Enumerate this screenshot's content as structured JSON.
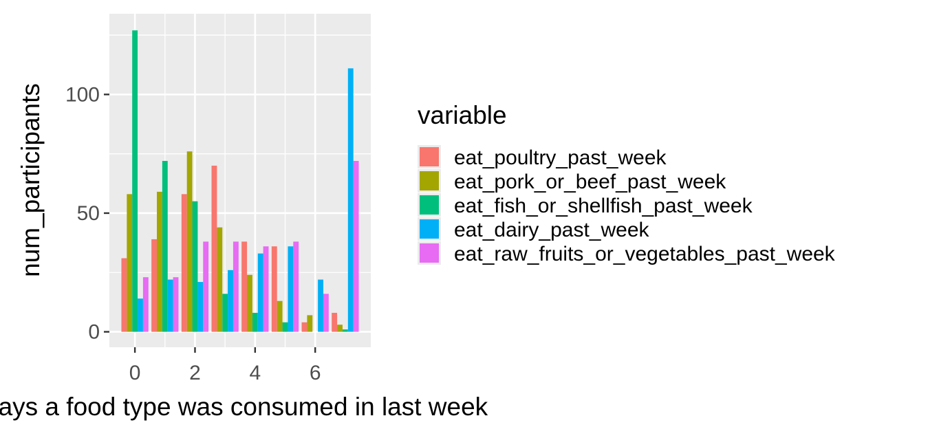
{
  "chart_data": {
    "type": "bar",
    "title": "",
    "xlabel": "days a food type was consumed in last week",
    "ylabel": "num_participants",
    "x": [
      0,
      1,
      2,
      3,
      4,
      5,
      6,
      7
    ],
    "xticks": [
      0,
      2,
      4,
      6
    ],
    "yticks": [
      0,
      50,
      100
    ],
    "xlim": [
      -0.85,
      7.85
    ],
    "ylim": [
      -6.5,
      134
    ],
    "grid": true,
    "legend": {
      "title": "variable",
      "position": "right"
    },
    "series": [
      {
        "name": "eat_poultry_past_week",
        "color": "#F8766D",
        "values": [
          31,
          39,
          58,
          70,
          38,
          36,
          4,
          8
        ]
      },
      {
        "name": "eat_pork_or_beef_past_week",
        "color": "#A3A500",
        "values": [
          58,
          59,
          76,
          44,
          24,
          13,
          7,
          3
        ]
      },
      {
        "name": "eat_fish_or_shellfish_past_week",
        "color": "#00BF7D",
        "values": [
          127,
          72,
          55,
          16,
          8,
          4,
          0,
          1
        ]
      },
      {
        "name": "eat_dairy_past_week",
        "color": "#00B0F6",
        "values": [
          14,
          22,
          21,
          26,
          33,
          36,
          22,
          111
        ]
      },
      {
        "name": "eat_raw_fruits_or_vegetables_past_week",
        "color": "#E76BF3",
        "values": [
          23,
          23,
          38,
          38,
          36,
          38,
          16,
          72
        ]
      }
    ]
  }
}
